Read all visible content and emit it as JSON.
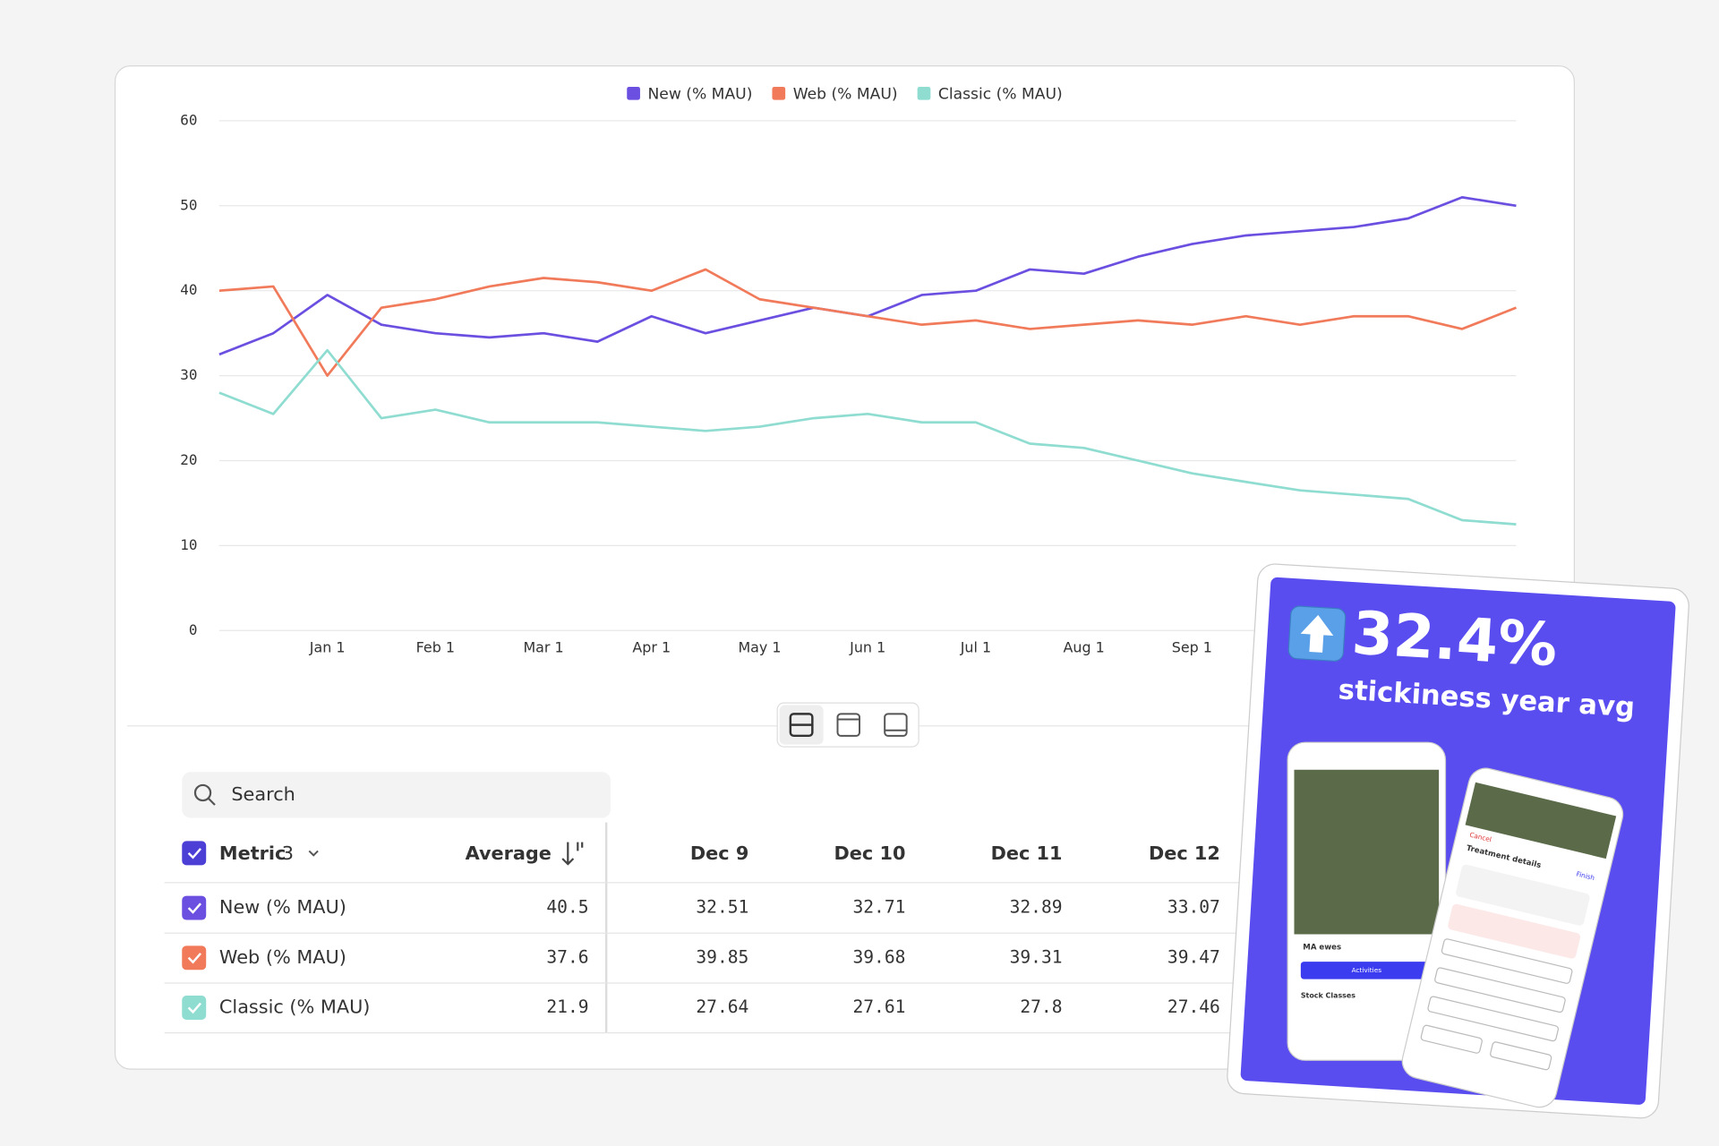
{
  "chart_data": {
    "type": "line",
    "categories": [
      null,
      null,
      "Jan 1",
      null,
      "Feb 1",
      null,
      "Mar 1",
      null,
      "Apr 1",
      null,
      "May 1",
      null,
      "Jun 1",
      null,
      "Jul 1",
      null,
      "Aug 1",
      null,
      "Sep 1",
      null,
      null,
      null,
      null,
      null,
      null
    ],
    "series": [
      {
        "name": "New (% MAU)",
        "color": "#6b4fe0",
        "values": [
          32.5,
          35,
          39.5,
          36,
          35,
          34.5,
          35,
          34,
          37,
          35,
          36.5,
          38,
          37,
          39.5,
          40,
          42.5,
          42,
          44,
          45.5,
          46.5,
          47,
          47.5,
          48.5,
          51,
          50
        ]
      },
      {
        "name": "Web (% MAU)",
        "color": "#f07a5a",
        "values": [
          40,
          40.5,
          30,
          38,
          39,
          40.5,
          41.5,
          41,
          40,
          42.5,
          39,
          38,
          37,
          36,
          36.5,
          35.5,
          36,
          36.5,
          36,
          37,
          36,
          37,
          37,
          35.5,
          38
        ]
      },
      {
        "name": "Classic (% MAU)",
        "color": "#8fdcd1",
        "values": [
          28,
          25.5,
          33,
          25,
          26,
          24.5,
          24.5,
          24.5,
          24,
          23.5,
          24,
          25,
          25.5,
          24.5,
          24.5,
          22,
          21.5,
          20,
          18.5,
          17.5,
          16.5,
          16,
          15.5,
          13,
          12.5
        ]
      }
    ],
    "ylim": [
      0,
      60
    ],
    "yticks": [
      0,
      10,
      20,
      30,
      40,
      50,
      60
    ],
    "grid": true,
    "legend": "top"
  },
  "table": {
    "search_placeholder": "Search",
    "header": {
      "metric": "Metric",
      "count": 3,
      "average": "Average",
      "dates": [
        "Dec 9",
        "Dec 10",
        "Dec 11",
        "Dec 12"
      ]
    },
    "rows": [
      {
        "name": "New (% MAU)",
        "average": 40.5,
        "values": [
          32.51,
          32.71,
          32.89,
          33.07
        ]
      },
      {
        "name": "Web (% MAU)",
        "average": 37.6,
        "values": [
          39.85,
          39.68,
          39.31,
          39.47
        ]
      },
      {
        "name": "Classic (% MAU)",
        "average": 21.9,
        "values": [
          27.64,
          27.61,
          27.8,
          27.46
        ]
      }
    ]
  },
  "promo": {
    "headline": "32.4%",
    "subtitle": "stickiness year avg",
    "phone_texts": [
      "MA ewes",
      "Activities",
      "Stock Classes",
      "Treatment details",
      "Cancel",
      "Finish"
    ]
  }
}
